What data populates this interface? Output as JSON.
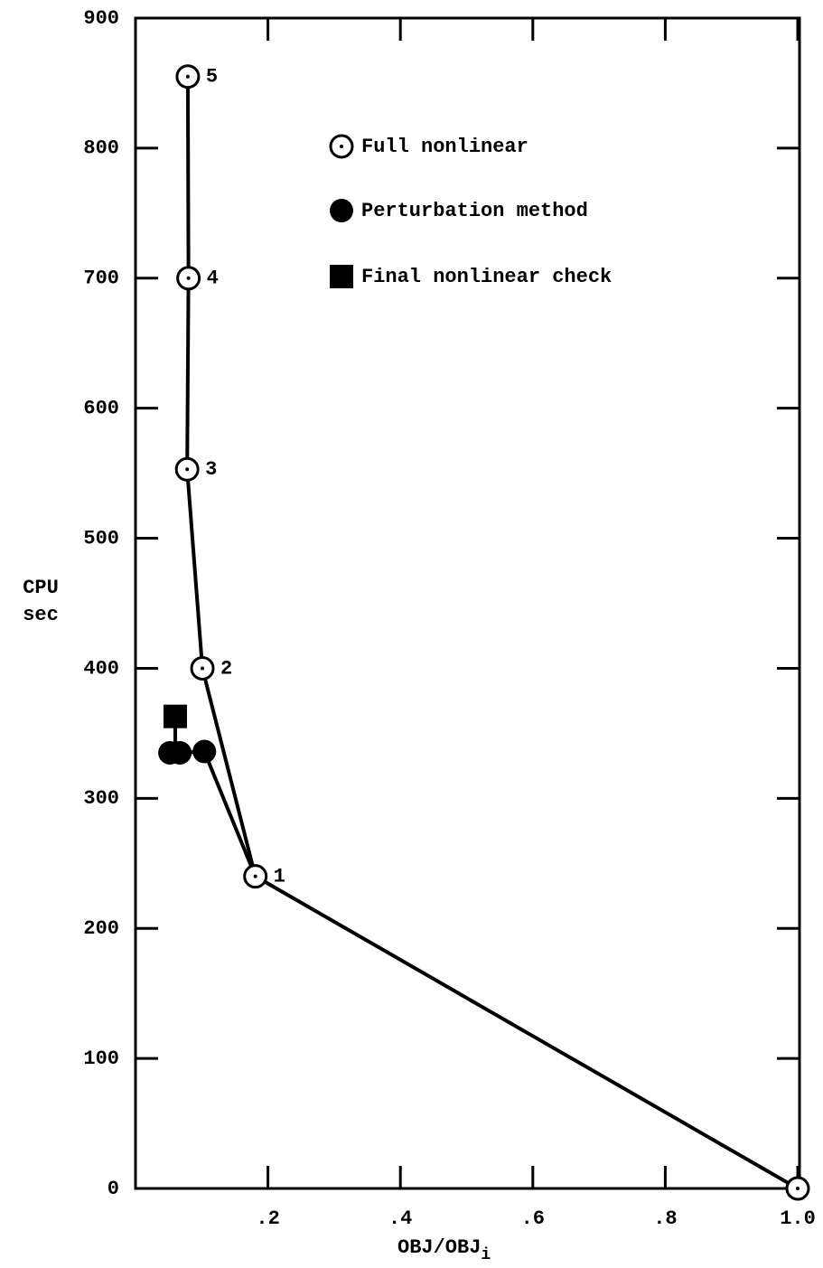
{
  "chart_data": {
    "type": "scatter",
    "xlabel": "OBJ/OBJ",
    "xlabel_subscript": "i",
    "ylabel": "CPU sec",
    "xlim": [
      0,
      1.0
    ],
    "ylim": [
      0,
      900
    ],
    "xticks": [
      {
        "value": 0.2,
        "label": ".2"
      },
      {
        "value": 0.4,
        "label": ".4"
      },
      {
        "value": 0.6,
        "label": ".6"
      },
      {
        "value": 0.8,
        "label": ".8"
      },
      {
        "value": 1.0,
        "label": "1.0"
      }
    ],
    "yticks": [
      0,
      100,
      200,
      300,
      400,
      500,
      600,
      700,
      800,
      900
    ],
    "series": [
      {
        "name": "Full nonlinear",
        "marker": "open-dot",
        "color": "#000000",
        "x": [
          1.0,
          0.181,
          0.101,
          0.078,
          0.08,
          0.079
        ],
        "values": [
          0,
          240,
          400,
          553,
          700,
          855
        ],
        "point_labels": [
          null,
          "1",
          "2",
          "3",
          "4",
          "5"
        ]
      },
      {
        "name": "Perturbation method",
        "marker": "filled-circle",
        "color": "#000000",
        "x": [
          0.104,
          0.067,
          0.052
        ],
        "values": [
          336,
          335,
          335
        ]
      },
      {
        "name": "Final nonlinear check",
        "marker": "filled-square",
        "color": "#000000",
        "x": [
          0.06
        ],
        "values": [
          363
        ]
      }
    ]
  }
}
